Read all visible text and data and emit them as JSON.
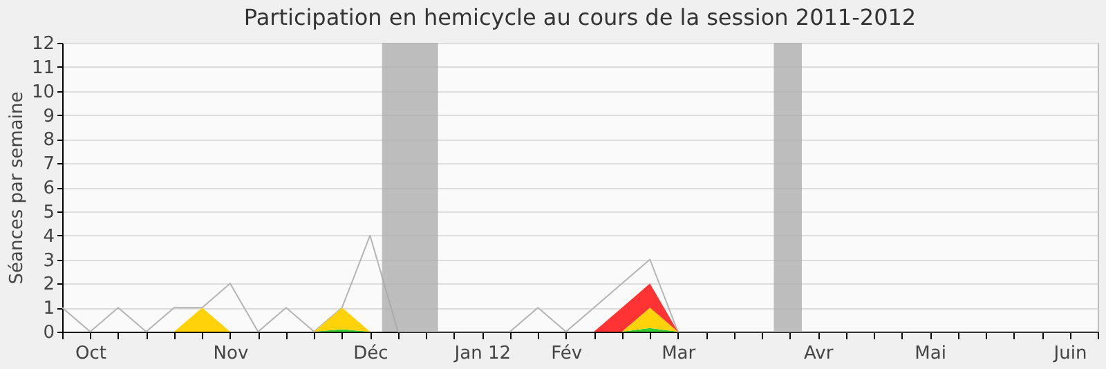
{
  "chart_data": {
    "type": "area",
    "title": "Participation en hemicycle au cours de la session 2011-2012",
    "ylabel": "Séances par semaine",
    "x": [
      "2011-10-03",
      "2011-10-10",
      "2011-10-17",
      "2011-10-24",
      "2011-10-31",
      "2011-11-07",
      "2011-11-14",
      "2011-11-21",
      "2011-11-28",
      "2011-12-05",
      "2011-12-12",
      "2011-12-19",
      "2011-12-26",
      "2012-01-02",
      "2012-01-09",
      "2012-01-16",
      "2012-01-23",
      "2012-01-30",
      "2012-02-06",
      "2012-02-13",
      "2012-02-20",
      "2012-02-27",
      "2012-03-05",
      "2012-03-12",
      "2012-03-19",
      "2012-03-26",
      "2012-04-02",
      "2012-04-09",
      "2012-04-16",
      "2012-04-23",
      "2012-04-30",
      "2012-05-07",
      "2012-05-14",
      "2012-05-21",
      "2012-05-28",
      "2012-06-04",
      "2012-06-11",
      "2012-06-18"
    ],
    "stacked": true,
    "series": [
      {
        "type": "line",
        "color": "#b4b4b4",
        "values": [
          1,
          0,
          1,
          0,
          1,
          1,
          2,
          0,
          1,
          0,
          1,
          4,
          0,
          0,
          0,
          0,
          0,
          1,
          0,
          1,
          2,
          3,
          0,
          0,
          0,
          0,
          0,
          0,
          0,
          0,
          0,
          0,
          0,
          0,
          0,
          0,
          0,
          0
        ]
      },
      {
        "color": "#33cc33",
        "values": [
          0,
          0,
          0,
          0,
          0,
          0,
          0,
          0,
          0,
          0,
          0.1,
          0,
          0,
          0,
          0,
          0,
          0,
          0,
          0,
          0,
          0,
          0.15,
          0,
          0,
          0,
          0,
          0,
          0,
          0,
          0,
          0,
          0,
          0,
          0,
          0,
          0,
          0,
          0
        ]
      },
      {
        "color": "#ffd20a",
        "values": [
          0,
          0,
          0,
          0,
          0,
          1,
          0,
          0,
          0,
          0,
          0.9,
          0,
          0,
          0,
          0,
          0,
          0,
          0,
          0,
          0,
          0,
          0.85,
          0,
          0,
          0,
          0,
          0,
          0,
          0,
          0,
          0,
          0,
          0,
          0,
          0,
          0,
          0,
          0
        ]
      },
      {
        "color": "#ff3333",
        "values": [
          0,
          0,
          0,
          0,
          0,
          0,
          0,
          0,
          0,
          0,
          0,
          0,
          0,
          0,
          0,
          0,
          0,
          0,
          0,
          0,
          1,
          1,
          0,
          0,
          0,
          0,
          0,
          0,
          0,
          0,
          0,
          0,
          0,
          0,
          0,
          0,
          0,
          0
        ]
      }
    ],
    "xlim": [
      "2011-10-03",
      "2012-06-18"
    ],
    "xticks": [
      {
        "value": "2011-10-03",
        "label": null
      },
      {
        "value": "2011-10-10",
        "label": "Oct"
      },
      {
        "value": "2011-10-17",
        "label": null
      },
      {
        "value": "2011-10-24",
        "label": null
      },
      {
        "value": "2011-10-31",
        "label": null
      },
      {
        "value": "2011-11-07",
        "label": null
      },
      {
        "value": "2011-11-14",
        "label": "Nov"
      },
      {
        "value": "2011-11-21",
        "label": null
      },
      {
        "value": "2011-11-28",
        "label": null
      },
      {
        "value": "2011-12-05",
        "label": null
      },
      {
        "value": "2011-12-12",
        "label": null
      },
      {
        "value": "2011-12-19",
        "label": "Déc"
      },
      {
        "value": "2011-12-26",
        "label": null
      },
      {
        "value": "2012-01-02",
        "label": null
      },
      {
        "value": "2012-01-09",
        "label": null
      },
      {
        "value": "2012-01-16",
        "label": "Jan 12"
      },
      {
        "value": "2012-01-23",
        "label": null
      },
      {
        "value": "2012-01-30",
        "label": null
      },
      {
        "value": "2012-02-06",
        "label": "Fév"
      },
      {
        "value": "2012-02-13",
        "label": null
      },
      {
        "value": "2012-02-20",
        "label": null
      },
      {
        "value": "2012-02-27",
        "label": null
      },
      {
        "value": "2012-03-05",
        "label": "Mar"
      },
      {
        "value": "2012-03-12",
        "label": null
      },
      {
        "value": "2012-03-19",
        "label": null
      },
      {
        "value": "2012-03-26",
        "label": null
      },
      {
        "value": "2012-04-02",
        "label": null
      },
      {
        "value": "2012-04-09",
        "label": "Avr"
      },
      {
        "value": "2012-04-16",
        "label": null
      },
      {
        "value": "2012-04-23",
        "label": null
      },
      {
        "value": "2012-04-30",
        "label": null
      },
      {
        "value": "2012-05-07",
        "label": "Mai"
      },
      {
        "value": "2012-05-14",
        "label": null
      },
      {
        "value": "2012-05-21",
        "label": null
      },
      {
        "value": "2012-05-28",
        "label": null
      },
      {
        "value": "2012-06-04",
        "label": null
      },
      {
        "value": "2012-06-11",
        "label": "Juin"
      },
      {
        "value": "2012-06-18",
        "label": null
      }
    ],
    "ylim": [
      0,
      12
    ],
    "yticks": [
      0,
      1,
      2,
      3,
      4,
      5,
      6,
      7,
      8,
      9,
      10,
      11,
      12
    ],
    "bands": [
      {
        "axis": "x",
        "from": "2011-12-22",
        "to": "2012-01-05",
        "color": "#a8a8a8"
      },
      {
        "axis": "x",
        "from": "2012-03-29",
        "to": "2012-04-05",
        "color": "#a8a8a8"
      }
    ],
    "grid": "y",
    "legend": false
  }
}
